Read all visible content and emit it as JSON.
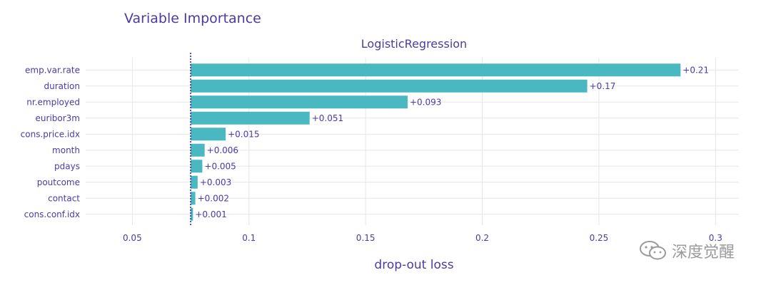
{
  "page": {
    "title": "Variable Importance"
  },
  "watermark": {
    "text": "深度觉醒"
  },
  "colors": {
    "bar": "#4ab8c1",
    "text": "#4a3aa8",
    "grid": "#e6e6e6",
    "baseline": "#3b2a96"
  },
  "chart_data": {
    "type": "bar",
    "orientation": "horizontal",
    "subtitle": "LogisticRegression",
    "xlabel": "drop-out loss",
    "ylabel": "",
    "xlim": [
      0.03,
      0.31
    ],
    "x_ticks": [
      0.05,
      0.1,
      0.15,
      0.2,
      0.25,
      0.3
    ],
    "x_tick_labels": [
      "0.05",
      "0.1",
      "0.15",
      "0.2",
      "0.25",
      "0.3"
    ],
    "baseline": 0.075,
    "baseline_style": "dotted vertical line",
    "grid": true,
    "categories": [
      "emp.var.rate",
      "duration",
      "nr.employed",
      "euribor3m",
      "cons.price.idx",
      "month",
      "pdays",
      "poutcome",
      "contact",
      "cons.conf.idx"
    ],
    "values": [
      0.285,
      0.245,
      0.168,
      0.126,
      0.09,
      0.081,
      0.08,
      0.078,
      0.077,
      0.076
    ],
    "labels": [
      "+0.21",
      "+0.17",
      "+0.093",
      "+0.051",
      "+0.015",
      "+0.006",
      "+0.005",
      "+0.003",
      "+0.002",
      "+0.001"
    ]
  }
}
